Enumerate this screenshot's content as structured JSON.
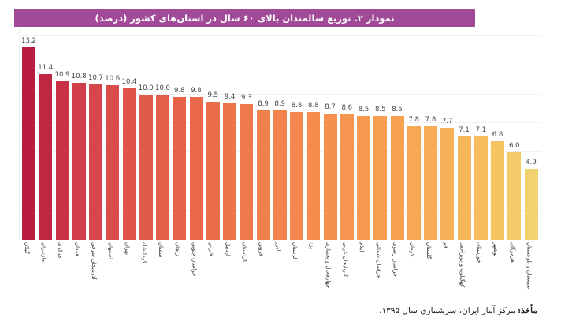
{
  "chart_data": {
    "type": "bar",
    "title": "نمودار ۲. توزیع سالمندان بالای ۶۰ سال در استان‌های کشور (درصد)",
    "xlabel": "",
    "ylabel": "",
    "ylim": [
      0,
      14.5
    ],
    "grid": true,
    "gridline_step": 2,
    "y_axis_visible": false,
    "legend": "none",
    "categories": [
      "گیلان",
      "مازندران",
      "مرکزی",
      "همدان",
      "آذربایجان شرقی",
      "اصفهان",
      "تهران",
      "کرمانشاه",
      "سمنان",
      "زنجان",
      "خراسان جنوبی",
      "فارس",
      "اردبیل",
      "کردستان",
      "قزوین",
      "البرز",
      "لرستان",
      "یزد",
      "چهارمحال و بختیاری",
      "آذربایجان غربی",
      "ایلام",
      "خراسان شمالی",
      "خراسان رضوی",
      "کرمان",
      "گلستان",
      "قم",
      "کهگیلویه و بویراحمد",
      "خوزستان",
      "بوشهر",
      "هرمزگان",
      "سیستان و بلوچستان"
    ],
    "values": [
      13.2,
      11.4,
      10.9,
      10.8,
      10.7,
      10.6,
      10.4,
      10.0,
      10.0,
      9.8,
      9.8,
      9.5,
      9.4,
      9.3,
      8.9,
      8.9,
      8.8,
      8.8,
      8.7,
      8.6,
      8.5,
      8.5,
      8.5,
      7.8,
      7.8,
      7.7,
      7.1,
      7.1,
      6.8,
      6.0,
      4.9
    ],
    "value_labels": [
      "13.2",
      "11.4",
      "10.9",
      "10.8",
      "10.7",
      "10.6",
      "10.4",
      "10.0",
      "10.0",
      "9.8",
      "9.8",
      "9.5",
      "9.4",
      "9.3",
      "8.9",
      "8.9",
      "8.8",
      "8.8",
      "8.7",
      "8.6",
      "8.5",
      "8.5",
      "8.5",
      "7.8",
      "7.8",
      "7.7",
      "7.1",
      "7.1",
      "6.8",
      "6.0",
      "4.9"
    ],
    "color_gradient": [
      "#b81c3e",
      "#d4414a",
      "#e0584a",
      "#e9684a",
      "#f07c4c",
      "#f48a4e",
      "#f7994f",
      "#f8a853",
      "#f6ba5c",
      "#f2d26e"
    ]
  },
  "header": {
    "title": "نمودار ۲. توزیع سالمندان بالای ۶۰ سال در استان‌های کشور (درصد)",
    "background": "#a04a98"
  },
  "footer": {
    "source_label": "مأخذ:",
    "source_text": " مرکز آمار ایران، سرشماری سال ۱۳۹۵."
  }
}
